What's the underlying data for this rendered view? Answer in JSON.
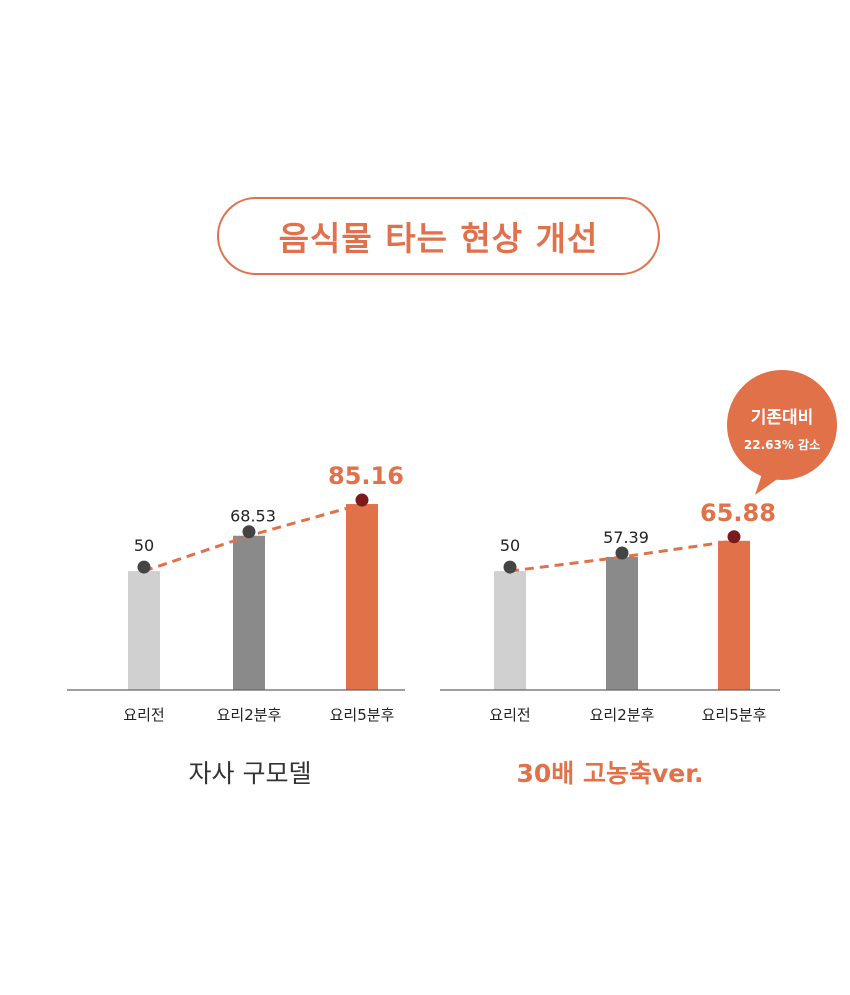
{
  "title": "음식물 타는 현상 개선",
  "colors": {
    "accent": "#e07149",
    "bar_before": "#d0d0d0",
    "bar_2min": "#8a8a8a",
    "dot_dark": "#444444",
    "dot_red": "#7a1a1a"
  },
  "chart_data": [
    {
      "type": "bar",
      "title": "자사 구모델",
      "categories": [
        "요리전",
        "요리2분후",
        "요리5분후"
      ],
      "values": [
        50,
        68.53,
        85.16
      ],
      "value_labels": [
        "50",
        "68.53",
        "85.16"
      ],
      "overlay": "dashed line",
      "ylim": [
        -12.4,
        100
      ]
    },
    {
      "type": "bar",
      "title": "30배 고농축ver.",
      "categories": [
        "요리전",
        "요리2분후",
        "요리5분후"
      ],
      "values": [
        50,
        57.39,
        65.88
      ],
      "value_labels": [
        "50",
        "57.39",
        "65.88"
      ],
      "overlay": "dashed line",
      "ylim": [
        -12.4,
        100
      ],
      "annotation": {
        "line1": "기존대비",
        "line2": "22.63% 감소"
      }
    }
  ]
}
